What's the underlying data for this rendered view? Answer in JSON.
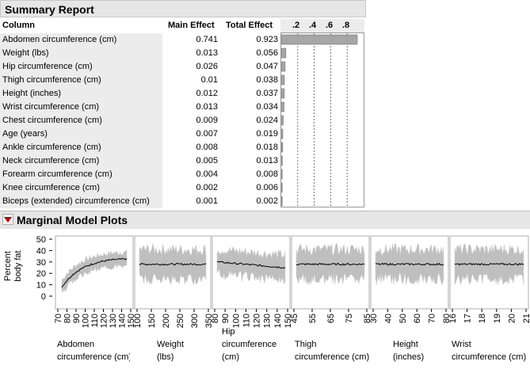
{
  "summary": {
    "title": "Summary Report",
    "col_column": "Column",
    "col_main": "Main Effect",
    "col_total": "Total Effect",
    "bar_ticks": [
      ".2",
      ".4",
      ".6",
      ".8"
    ],
    "rows": [
      {
        "label": "Abdomen circumference (cm)",
        "main": "0.741",
        "total": "0.923",
        "bar": 0.923
      },
      {
        "label": "Weight (lbs)",
        "main": "0.013",
        "total": "0.056",
        "bar": 0.056
      },
      {
        "label": "Hip circumference (cm)",
        "main": "0.026",
        "total": "0.047",
        "bar": 0.047
      },
      {
        "label": "Thigh circumference (cm)",
        "main": "0.01",
        "total": "0.038",
        "bar": 0.038
      },
      {
        "label": "Height (inches)",
        "main": "0.012",
        "total": "0.037",
        "bar": 0.037
      },
      {
        "label": "Wrist circumference (cm)",
        "main": "0.013",
        "total": "0.034",
        "bar": 0.034
      },
      {
        "label": "Chest circumference (cm)",
        "main": "0.009",
        "total": "0.024",
        "bar": 0.024
      },
      {
        "label": "Age (years)",
        "main": "0.007",
        "total": "0.019",
        "bar": 0.019
      },
      {
        "label": "Ankle circumference (cm)",
        "main": "0.008",
        "total": "0.018",
        "bar": 0.018
      },
      {
        "label": "Neck circumference (cm)",
        "main": "0.005",
        "total": "0.013",
        "bar": 0.013
      },
      {
        "label": "Forearm circumference (cm)",
        "main": "0.004",
        "total": "0.008",
        "bar": 0.008
      },
      {
        "label": "Knee circumference (cm)",
        "main": "0.002",
        "total": "0.006",
        "bar": 0.006
      },
      {
        "label": "Biceps (extended) circumference (cm)",
        "main": "0.001",
        "total": "0.002",
        "bar": 0.002
      }
    ]
  },
  "marginal": {
    "title": "Marginal Model Plots",
    "ylabel_line1": "Percent",
    "ylabel_line2": "body fat",
    "yticks": [
      "50",
      "40",
      "30",
      "20",
      "10",
      "0"
    ],
    "panels": [
      {
        "name_l1": "Abdomen",
        "name_l2": "circumference (cm)",
        "ticks": [
          "70",
          "80",
          "90",
          "100",
          "110",
          "120",
          "130",
          "140",
          "150"
        ],
        "trend": "rise"
      },
      {
        "name_l1": "Weight",
        "name_l2": "(lbs)",
        "ticks": [
          "100",
          "150",
          "200",
          "250",
          "300",
          "350"
        ],
        "trend": "flat"
      },
      {
        "name_l0": "Hip",
        "name_l1": "circumference",
        "name_l2": "(cm)",
        "ticks": [
          "80",
          "90",
          "100",
          "110",
          "120",
          "130",
          "140",
          "150"
        ],
        "trend": "down"
      },
      {
        "name_l1": "Thigh",
        "name_l2": "circumference (cm)",
        "ticks": [
          "45",
          "55",
          "65",
          "75",
          "85"
        ],
        "trend": "flat"
      },
      {
        "name_l1": "Height",
        "name_l2": "(inches)",
        "ticks": [
          "30",
          "40",
          "50",
          "60",
          "70",
          "80"
        ],
        "trend": "flat"
      },
      {
        "name_l1": "Wrist",
        "name_l2": "circumference (cm)",
        "ticks": [
          "16",
          "17",
          "18",
          "19",
          "20",
          "21"
        ],
        "trend": "flat"
      }
    ]
  },
  "colors": {
    "bar": "#a6a6a6",
    "band": "#bfbfbf",
    "line": "#000000",
    "header": "#e6e6e6",
    "disclosure": "#c00000"
  }
}
